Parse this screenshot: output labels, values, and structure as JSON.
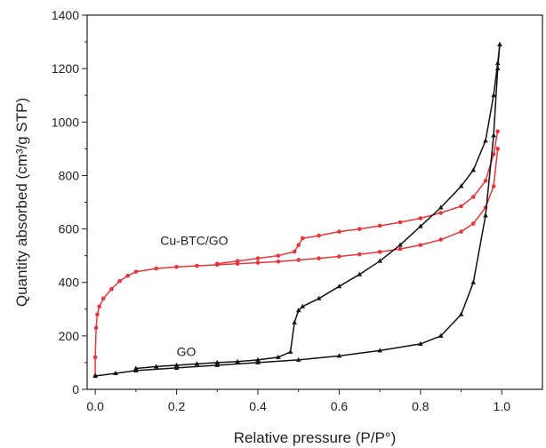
{
  "chart_data": {
    "type": "line",
    "xlabel": "Relative pressure (P/P°)",
    "ylabel": "Quantity absorbed (cm³/g STP)",
    "xlim": [
      -0.02,
      1.1
    ],
    "ylim": [
      0,
      1400
    ],
    "xticks": [
      "0.0",
      "0.2",
      "0.4",
      "0.6",
      "0.8",
      "1.0"
    ],
    "yticks": [
      "0",
      "200",
      "400",
      "600",
      "800",
      "1000",
      "1200",
      "1400"
    ],
    "grid": false,
    "annotations": [
      {
        "text": "Cu-BTC/GO",
        "series": "Cu-BTC/GO"
      },
      {
        "text": "GO",
        "series": "GO"
      }
    ],
    "series": [
      {
        "color": "#e8353a",
        "marker": "circle",
        "branches": [
          {
            "role": "adsorption",
            "x": [
              0.0,
              0.0,
              0.002,
              0.005,
              0.01,
              0.02,
              0.04,
              0.06,
              0.08,
              0.1,
              0.15,
              0.2,
              0.25,
              0.3,
              0.35,
              0.4,
              0.45,
              0.5,
              0.55,
              0.6,
              0.65,
              0.7,
              0.75,
              0.8,
              0.85,
              0.9,
              0.93,
              0.96,
              0.98,
              0.99
            ],
            "y": [
              50,
              120,
              230,
              280,
              310,
              340,
              375,
              405,
              425,
              440,
              452,
              458,
              462,
              466,
              470,
              474,
              478,
              484,
              490,
              497,
              505,
              514,
              525,
              540,
              560,
              590,
              620,
              680,
              760,
              900
            ]
          },
          {
            "role": "desorption",
            "x": [
              0.99,
              0.98,
              0.96,
              0.93,
              0.9,
              0.85,
              0.8,
              0.75,
              0.7,
              0.65,
              0.6,
              0.55,
              0.51,
              0.5,
              0.49,
              0.45,
              0.4,
              0.35,
              0.3
            ],
            "y": [
              965,
              880,
              780,
              720,
              685,
              660,
              640,
              625,
              612,
              600,
              590,
              575,
              565,
              540,
              515,
              500,
              490,
              480,
              470
            ]
          }
        ]
      },
      {
        "color": "#111111",
        "marker": "triangle",
        "branches": [
          {
            "role": "adsorption",
            "x": [
              0.0,
              0.05,
              0.1,
              0.2,
              0.3,
              0.4,
              0.5,
              0.6,
              0.7,
              0.8,
              0.85,
              0.9,
              0.93,
              0.96,
              0.98,
              0.99,
              0.995
            ],
            "y": [
              50,
              60,
              70,
              80,
              90,
              100,
              110,
              125,
              145,
              170,
              200,
              280,
              400,
              650,
              950,
              1200,
              1290
            ]
          },
          {
            "role": "desorption",
            "x": [
              0.995,
              0.99,
              0.98,
              0.96,
              0.93,
              0.9,
              0.85,
              0.8,
              0.75,
              0.7,
              0.65,
              0.6,
              0.55,
              0.51,
              0.5,
              0.49,
              0.48,
              0.45,
              0.4,
              0.35,
              0.3,
              0.25,
              0.2,
              0.15,
              0.1
            ],
            "y": [
              1290,
              1220,
              1100,
              930,
              820,
              760,
              680,
              610,
              540,
              480,
              430,
              385,
              340,
              310,
              295,
              250,
              140,
              120,
              110,
              104,
              100,
              95,
              90,
              85,
              78
            ]
          }
        ]
      }
    ]
  }
}
